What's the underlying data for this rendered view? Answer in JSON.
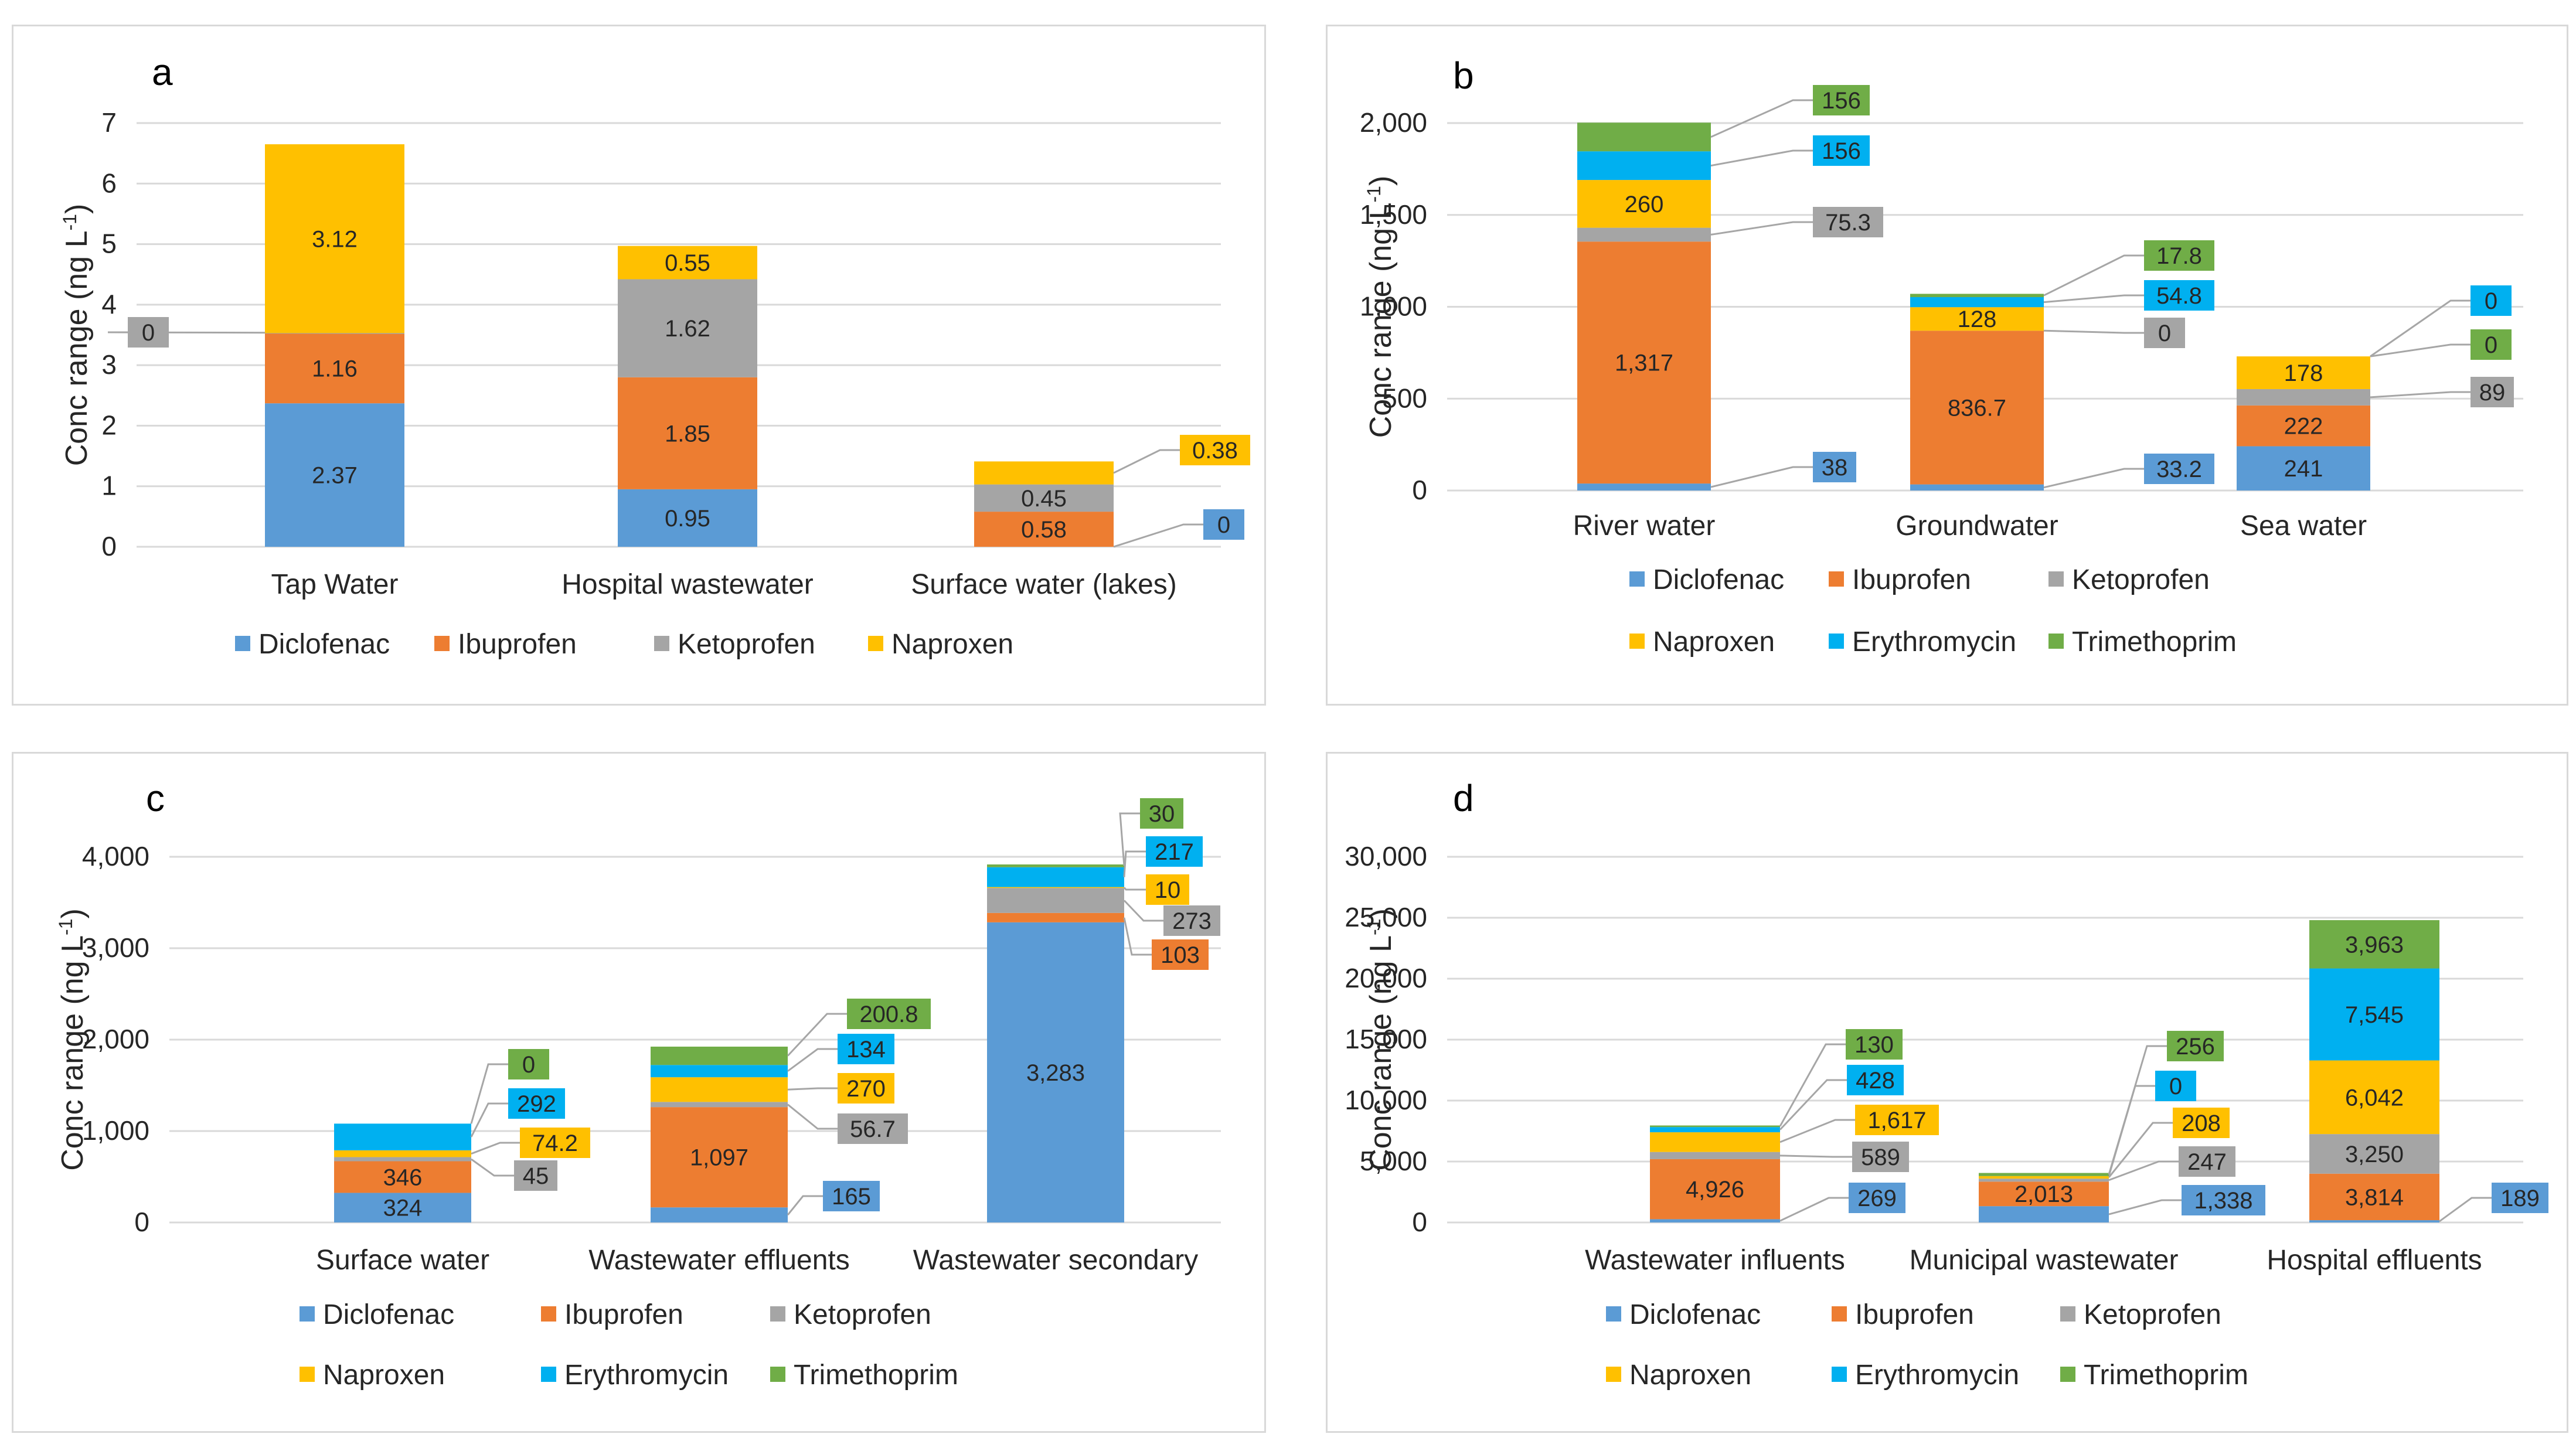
{
  "series_colors": {
    "Diclofenac": "#5b9bd5",
    "Ibuprofen": "#ed7d31",
    "Ketoprofen": "#a5a5a5",
    "Naproxen": "#ffc000",
    "Erythromycin": "#00b0f0",
    "Trimethoprim": "#70ad47"
  },
  "chart_data": [
    {
      "panel": "a",
      "type": "bar",
      "stacked": true,
      "ylabel": "Conc range (ng L",
      "ylabel_sup": "-1",
      "ylabel_close": ")",
      "ylim": [
        0,
        7
      ],
      "yticks": [
        {
          "v": 0,
          "t": "0"
        },
        {
          "v": 1,
          "t": "1"
        },
        {
          "v": 2,
          "t": "2"
        },
        {
          "v": 3,
          "t": "3"
        },
        {
          "v": 4,
          "t": "4"
        },
        {
          "v": 5,
          "t": "5"
        },
        {
          "v": 6,
          "t": "6"
        },
        {
          "v": 7,
          "t": "7"
        }
      ],
      "categories": [
        "Tap Water",
        "Hospital wastewater",
        "Surface water (lakes)"
      ],
      "series": [
        {
          "name": "Diclofenac",
          "values": [
            2.37,
            0.95,
            0
          ],
          "labels": [
            "2.37",
            "0.95",
            "0"
          ],
          "callout": [
            false,
            false,
            true
          ]
        },
        {
          "name": "Ibuprofen",
          "values": [
            1.16,
            1.85,
            0.58
          ],
          "labels": [
            "1.16",
            "1.85",
            "0.58"
          ],
          "callout": [
            false,
            false,
            false
          ]
        },
        {
          "name": "Ketoprofen",
          "values": [
            0,
            1.62,
            0.45
          ],
          "labels": [
            "0",
            "1.62",
            "0.45"
          ],
          "callout": [
            true,
            false,
            false
          ]
        },
        {
          "name": "Naproxen",
          "values": [
            3.12,
            0.55,
            0.38
          ],
          "labels": [
            "3.12",
            "0.55",
            "0.38"
          ],
          "callout": [
            false,
            false,
            true
          ]
        }
      ],
      "legend": [
        [
          "Diclofenac",
          "Ibuprofen",
          "Ketoprofen",
          "Naproxen"
        ]
      ]
    },
    {
      "panel": "b",
      "type": "bar",
      "stacked": true,
      "ylabel": "Conc range (ng L",
      "ylabel_sup": "-1",
      "ylabel_close": ")",
      "ylim": [
        0,
        2000
      ],
      "yticks": [
        {
          "v": 0,
          "t": "0"
        },
        {
          "v": 500,
          "t": "500"
        },
        {
          "v": 1000,
          "t": "1,000"
        },
        {
          "v": 1500,
          "t": "1,500"
        },
        {
          "v": 2000,
          "t": "2,000"
        }
      ],
      "categories": [
        "River water",
        "Groundwater",
        "Sea water"
      ],
      "series": [
        {
          "name": "Diclofenac",
          "values": [
            38,
            33.2,
            241
          ],
          "labels": [
            "38",
            "33.2",
            "241"
          ],
          "callout": [
            true,
            true,
            false
          ]
        },
        {
          "name": "Ibuprofen",
          "values": [
            1317,
            836.7,
            222
          ],
          "labels": [
            "1,317",
            "836.7",
            "222"
          ],
          "callout": [
            false,
            false,
            false
          ]
        },
        {
          "name": "Ketoprofen",
          "values": [
            75.3,
            0,
            89
          ],
          "labels": [
            "75.3",
            "0",
            "89"
          ],
          "callout": [
            true,
            true,
            true
          ]
        },
        {
          "name": "Naproxen",
          "values": [
            260,
            128,
            178
          ],
          "labels": [
            "260",
            "128",
            "178"
          ],
          "callout": [
            false,
            false,
            false
          ]
        },
        {
          "name": "Erythromycin",
          "values": [
            156,
            54.8,
            0
          ],
          "labels": [
            "156",
            "54.8",
            "0"
          ],
          "callout": [
            true,
            true,
            true
          ]
        },
        {
          "name": "Trimethoprim",
          "values": [
            156,
            17.8,
            0
          ],
          "labels": [
            "156",
            "17.8",
            "0"
          ],
          "callout": [
            true,
            true,
            true
          ]
        }
      ],
      "legend": [
        [
          "Diclofenac",
          "Ibuprofen",
          "Ketoprofen"
        ],
        [
          "Naproxen",
          "Erythromycin",
          "Trimethoprim"
        ]
      ]
    },
    {
      "panel": "c",
      "type": "bar",
      "stacked": true,
      "ylabel": "Conc range (ng L",
      "ylabel_sup": "-1",
      "ylabel_close": ")",
      "ylim": [
        0,
        4000
      ],
      "yticks": [
        {
          "v": 0,
          "t": "0"
        },
        {
          "v": 1000,
          "t": "1,000"
        },
        {
          "v": 2000,
          "t": "2,000"
        },
        {
          "v": 3000,
          "t": "3,000"
        },
        {
          "v": 4000,
          "t": "4,000"
        }
      ],
      "categories": [
        "Surface water",
        "Wastewater effluents",
        "Wastewater secondary"
      ],
      "series": [
        {
          "name": "Diclofenac",
          "values": [
            324,
            165,
            3283
          ],
          "labels": [
            "324",
            "165",
            "3,283"
          ],
          "callout": [
            false,
            true,
            false
          ]
        },
        {
          "name": "Ibuprofen",
          "values": [
            346,
            1097,
            103
          ],
          "labels": [
            "346",
            "1,097",
            "103"
          ],
          "callout": [
            false,
            false,
            true
          ]
        },
        {
          "name": "Ketoprofen",
          "values": [
            45,
            56.7,
            273
          ],
          "labels": [
            "45",
            "56.7",
            "273"
          ],
          "callout": [
            true,
            true,
            true
          ]
        },
        {
          "name": "Naproxen",
          "values": [
            74.2,
            270,
            10
          ],
          "labels": [
            "74.2",
            "270",
            "10"
          ],
          "callout": [
            true,
            true,
            true
          ]
        },
        {
          "name": "Erythromycin",
          "values": [
            292,
            134,
            217
          ],
          "labels": [
            "292",
            "134",
            "217"
          ],
          "callout": [
            true,
            true,
            true
          ]
        },
        {
          "name": "Trimethoprim",
          "values": [
            0,
            200.8,
            30
          ],
          "labels": [
            "0",
            "200.8",
            "30"
          ],
          "callout": [
            true,
            true,
            true
          ]
        }
      ],
      "legend": [
        [
          "Diclofenac",
          "Ibuprofen",
          "Ketoprofen"
        ],
        [
          "Naproxen",
          "Erythromycin",
          "Trimethoprim"
        ]
      ]
    },
    {
      "panel": "d",
      "type": "bar",
      "stacked": true,
      "ylabel": "Conc range (ng L",
      "ylabel_sup": "-1",
      "ylabel_close": ")",
      "ylim": [
        0,
        30000
      ],
      "yticks": [
        {
          "v": 0,
          "t": "0"
        },
        {
          "v": 5000,
          "t": "5,000"
        },
        {
          "v": 10000,
          "t": "10,000"
        },
        {
          "v": 15000,
          "t": "15,000"
        },
        {
          "v": 20000,
          "t": "20,000"
        },
        {
          "v": 25000,
          "t": "25,000"
        },
        {
          "v": 30000,
          "t": "30,000"
        }
      ],
      "categories": [
        "Wastewater influents",
        "Municipal wastewater",
        "Hospital effluents"
      ],
      "series": [
        {
          "name": "Diclofenac",
          "values": [
            269,
            1338,
            189
          ],
          "labels": [
            "269",
            "1,338",
            "189"
          ],
          "callout": [
            true,
            true,
            true
          ]
        },
        {
          "name": "Ibuprofen",
          "values": [
            4926,
            2013,
            3814
          ],
          "labels": [
            "4,926",
            "2,013",
            "3,814"
          ],
          "callout": [
            false,
            false,
            false
          ]
        },
        {
          "name": "Ketoprofen",
          "values": [
            589,
            247,
            3250
          ],
          "labels": [
            "589",
            "247",
            "3,250"
          ],
          "callout": [
            true,
            true,
            false
          ]
        },
        {
          "name": "Naproxen",
          "values": [
            1617,
            208,
            6042
          ],
          "labels": [
            "1,617",
            "208",
            "6,042"
          ],
          "callout": [
            true,
            true,
            false
          ]
        },
        {
          "name": "Erythromycin",
          "values": [
            428,
            0,
            7545
          ],
          "labels": [
            "428",
            "0",
            "7,545"
          ],
          "callout": [
            true,
            true,
            false
          ]
        },
        {
          "name": "Trimethoprim",
          "values": [
            130,
            256,
            3963
          ],
          "labels": [
            "130",
            "256",
            "3,963"
          ],
          "callout": [
            true,
            true,
            false
          ]
        }
      ],
      "legend": [
        [
          "Diclofenac",
          "Ibuprofen",
          "Ketoprofen"
        ],
        [
          "Naproxen",
          "Erythromycin",
          "Trimethoprim"
        ]
      ]
    }
  ]
}
